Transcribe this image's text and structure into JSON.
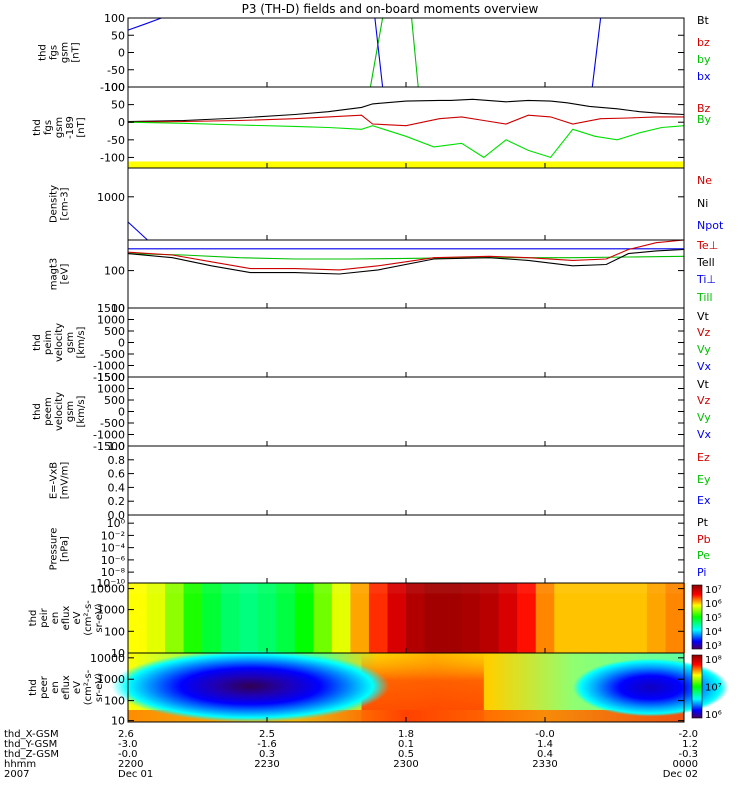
{
  "title": "P3 (TH-D) fields and on-board moments overview",
  "colors": {
    "black": "#000000",
    "red": "#cc0000",
    "green": "#00e000",
    "blue": "#0000ee",
    "yellow": "#ffff00",
    "frame": "#000000"
  },
  "chart_data": [
    {
      "id": "p1",
      "type": "line",
      "ylabel": [
        "thd",
        "fgs",
        "gsm",
        "[nT]"
      ],
      "yticks": [
        "100",
        "50",
        "0",
        "-50",
        "-100"
      ],
      "ytick_values": [
        100,
        50,
        0,
        -50,
        -100
      ],
      "ylim": [
        -100,
        100
      ],
      "legend": [
        {
          "label": "Bt",
          "color": "#000000"
        },
        {
          "label": "bz",
          "color": "#cc0000"
        },
        {
          "label": "by",
          "color": "#00c000"
        },
        {
          "label": "bx",
          "color": "#0000ee"
        }
      ],
      "series": [
        {
          "color": "#0000ee",
          "x": [
            0.0,
            0.03,
            0.06
          ],
          "y": [
            65,
            82,
            100
          ]
        },
        {
          "color": "#00c000",
          "x": [
            0.436,
            0.458
          ],
          "y": [
            -100,
            100
          ]
        },
        {
          "color": "#0000ee",
          "x": [
            0.444,
            0.458
          ],
          "y": [
            100,
            -100
          ]
        },
        {
          "color": "#00c000",
          "x": [
            0.51,
            0.522
          ],
          "y": [
            100,
            -100
          ]
        },
        {
          "color": "#0000ee",
          "x": [
            0.835,
            0.85
          ],
          "y": [
            -100,
            100
          ]
        }
      ]
    },
    {
      "id": "p2",
      "type": "line",
      "ylabel": [
        "thd",
        "fgs",
        "gsm",
        "-189",
        "[nT]"
      ],
      "yticks": [
        "100",
        "50",
        "0",
        "-50",
        "-100"
      ],
      "ytick_values": [
        100,
        50,
        0,
        -50,
        -100
      ],
      "ylim": [
        -130,
        100
      ],
      "legend": [
        {
          "label": "Bz",
          "color": "#cc0000"
        },
        {
          "label": "By",
          "color": "#00c000"
        }
      ],
      "bar_color": "#ffff00",
      "bar_value": -120,
      "series": [
        {
          "name": "black",
          "color": "#000000",
          "x": [
            0.0,
            0.1,
            0.2,
            0.3,
            0.36,
            0.42,
            0.44,
            0.5,
            0.56,
            0.58,
            0.62,
            0.68,
            0.72,
            0.76,
            0.79,
            0.83,
            0.88,
            0.92,
            0.96,
            1.0
          ],
          "y": [
            2,
            5,
            12,
            22,
            30,
            42,
            52,
            60,
            62,
            62,
            65,
            58,
            62,
            60,
            55,
            45,
            38,
            30,
            25,
            22
          ]
        },
        {
          "name": "red",
          "color": "#cc0000",
          "x": [
            0.0,
            0.1,
            0.2,
            0.3,
            0.36,
            0.42,
            0.44,
            0.5,
            0.56,
            0.6,
            0.64,
            0.68,
            0.72,
            0.76,
            0.8,
            0.85,
            0.9,
            0.95,
            1.0
          ],
          "y": [
            0,
            2,
            5,
            10,
            15,
            20,
            -5,
            -10,
            10,
            15,
            5,
            -5,
            20,
            15,
            -5,
            10,
            12,
            15,
            15
          ]
        },
        {
          "name": "green",
          "color": "#00e000",
          "x": [
            0.0,
            0.1,
            0.2,
            0.3,
            0.36,
            0.42,
            0.44,
            0.5,
            0.55,
            0.6,
            0.64,
            0.68,
            0.72,
            0.76,
            0.8,
            0.84,
            0.88,
            0.92,
            0.96,
            1.0
          ],
          "y": [
            0,
            -3,
            -8,
            -12,
            -15,
            -20,
            -10,
            -40,
            -70,
            -60,
            -100,
            -50,
            -80,
            -100,
            -20,
            -40,
            -50,
            -30,
            -15,
            -10
          ]
        }
      ]
    },
    {
      "id": "p3",
      "type": "line",
      "ylabel": [
        "Density",
        "[cm-3]"
      ],
      "yticks": [
        "1000"
      ],
      "ytick_values": [
        0.6
      ],
      "ylim": [
        0,
        1
      ],
      "legend": [
        {
          "label": "Ne",
          "color": "#cc0000"
        },
        {
          "label": "Ni",
          "color": "#000000"
        },
        {
          "label": "Npot",
          "color": "#0000ee"
        }
      ],
      "series": [
        {
          "color": "#0000ee",
          "x": [
            0.0,
            0.035
          ],
          "y": [
            0.25,
            0.0
          ]
        }
      ]
    },
    {
      "id": "p4",
      "type": "line",
      "ylabel": [
        "magt3",
        "[eV]"
      ],
      "yticks": [
        "100",
        "10"
      ],
      "ytick_values": [
        0.55,
        0.0
      ],
      "ylim": [
        0,
        1
      ],
      "legend": [
        {
          "label": "Te⊥",
          "color": "#cc0000"
        },
        {
          "label": "Tell",
          "color": "#000000"
        },
        {
          "label": "Ti⊥",
          "color": "#0000ee"
        },
        {
          "label": "Till",
          "color": "#00c000"
        }
      ],
      "series": [
        {
          "name": "blue",
          "color": "#0000ee",
          "x": [
            0.0,
            0.2,
            0.4,
            0.6,
            0.8,
            1.0
          ],
          "y": [
            0.87,
            0.87,
            0.87,
            0.87,
            0.87,
            0.87
          ]
        },
        {
          "name": "green",
          "color": "#00c000",
          "x": [
            0.0,
            0.1,
            0.2,
            0.3,
            0.4,
            0.5,
            0.6,
            0.7,
            0.8,
            0.9,
            1.0
          ],
          "y": [
            0.8,
            0.78,
            0.74,
            0.72,
            0.72,
            0.73,
            0.74,
            0.74,
            0.74,
            0.75,
            0.76
          ]
        },
        {
          "name": "red",
          "color": "#cc0000",
          "x": [
            0.0,
            0.08,
            0.15,
            0.22,
            0.3,
            0.38,
            0.45,
            0.55,
            0.65,
            0.72,
            0.8,
            0.86,
            0.9,
            0.95,
            1.0
          ],
          "y": [
            0.82,
            0.78,
            0.68,
            0.58,
            0.58,
            0.56,
            0.62,
            0.74,
            0.76,
            0.74,
            0.7,
            0.72,
            0.86,
            0.96,
            1.0
          ]
        },
        {
          "name": "black",
          "color": "#000000",
          "x": [
            0.0,
            0.08,
            0.15,
            0.22,
            0.3,
            0.38,
            0.45,
            0.55,
            0.65,
            0.72,
            0.8,
            0.86,
            0.9,
            0.95,
            1.0
          ],
          "y": [
            0.8,
            0.74,
            0.62,
            0.52,
            0.52,
            0.5,
            0.56,
            0.72,
            0.74,
            0.7,
            0.62,
            0.64,
            0.8,
            0.84,
            0.86
          ]
        }
      ]
    },
    {
      "id": "p5",
      "type": "line",
      "ylabel": [
        "thd",
        "peim",
        "velocity",
        "gsm",
        "[km/s]"
      ],
      "yticks": [
        "1500",
        "1000",
        "500",
        "0",
        "-500",
        "-1000",
        "-1500"
      ],
      "ytick_values": [
        1500,
        1000,
        500,
        0,
        -500,
        -1000,
        -1500
      ],
      "ylim": [
        -1500,
        1500
      ],
      "legend": [
        {
          "label": "Vt",
          "color": "#000000"
        },
        {
          "label": "Vz",
          "color": "#cc0000"
        },
        {
          "label": "Vy",
          "color": "#00c000"
        },
        {
          "label": "Vx",
          "color": "#0000ee"
        }
      ],
      "series": []
    },
    {
      "id": "p6",
      "type": "line",
      "ylabel": [
        "thd",
        "peem",
        "velocity",
        "gsm",
        "[km/s]"
      ],
      "yticks": [
        "1500",
        "1000",
        "500",
        "0",
        "-500",
        "-1000",
        "-1500"
      ],
      "ytick_values": [
        1500,
        1000,
        500,
        0,
        -500,
        -1000,
        -1500
      ],
      "ylim": [
        -1500,
        1500
      ],
      "legend": [
        {
          "label": "Vt",
          "color": "#000000"
        },
        {
          "label": "Vz",
          "color": "#cc0000"
        },
        {
          "label": "Vy",
          "color": "#00c000"
        },
        {
          "label": "Vx",
          "color": "#0000ee"
        }
      ],
      "series": []
    },
    {
      "id": "p7",
      "type": "line",
      "ylabel": [
        "E=-VxB",
        "[mV/m]"
      ],
      "yticks": [
        "1.0",
        "0.8",
        "0.6",
        "0.4",
        "0.2",
        "0.0"
      ],
      "ytick_values": [
        1.0,
        0.8,
        0.6,
        0.4,
        0.2,
        0.0
      ],
      "ylim": [
        0,
        1
      ],
      "legend": [
        {
          "label": "Ez",
          "color": "#cc0000"
        },
        {
          "label": "Ey",
          "color": "#00c000"
        },
        {
          "label": "Ex",
          "color": "#0000ee"
        }
      ],
      "series": []
    },
    {
      "id": "p8",
      "type": "line",
      "ylabel": [
        "Pressure",
        "[nPa]"
      ],
      "yticks": [
        "10⁰",
        "10⁻²",
        "10⁻⁴",
        "10⁻⁶",
        "10⁻⁸",
        "10⁻¹⁰"
      ],
      "ytick_values": [
        0.88,
        0.7,
        0.52,
        0.34,
        0.16,
        0.0
      ],
      "ylim": [
        0,
        1
      ],
      "legend": [
        {
          "label": "Pt",
          "color": "#000000"
        },
        {
          "label": "Pb",
          "color": "#cc0000"
        },
        {
          "label": "Pe",
          "color": "#00c000"
        },
        {
          "label": "Pi",
          "color": "#0000ee"
        }
      ],
      "series": []
    },
    {
      "id": "p9",
      "type": "heatmap",
      "ylabel": [
        "thd",
        "peir",
        "en",
        "eflux",
        "eV",
        "(cm²-s-",
        "sr-eV)"
      ],
      "yticks": [
        "10000",
        "1000",
        "100",
        "10"
      ],
      "ytick_values": [
        0.92,
        0.62,
        0.31,
        0.0
      ],
      "ylim": [
        0,
        1
      ],
      "colorbar_ticks": [
        "10⁷",
        "10⁶",
        "10⁵",
        "10⁴",
        "10³"
      ],
      "column_levels": [
        0.68,
        0.66,
        0.6,
        0.52,
        0.46,
        0.42,
        0.4,
        0.42,
        0.45,
        0.5,
        0.58,
        0.66,
        0.74,
        0.82,
        0.9,
        0.95,
        0.97,
        0.97,
        0.96,
        0.94,
        0.9,
        0.84,
        0.76,
        0.72,
        0.72,
        0.72,
        0.72,
        0.72,
        0.74,
        0.76
      ]
    },
    {
      "id": "p10",
      "type": "heatmap",
      "ylabel": [
        "thd",
        "peer",
        "en",
        "eflux",
        "eV",
        "(cm²-s-",
        "sr-eV)"
      ],
      "yticks": [
        "10000",
        "1000",
        "100",
        "10"
      ],
      "ytick_values": [
        0.93,
        0.62,
        0.31,
        0.02
      ],
      "ylim": [
        0,
        1
      ],
      "colorbar_ticks": [
        "10⁸",
        "10⁷",
        "10⁶"
      ]
    }
  ],
  "xaxis": {
    "rows": [
      {
        "label": "thd_X-GSM",
        "values": [
          "2.6",
          "2.5",
          "1.8",
          "-0.0",
          "-2.0"
        ]
      },
      {
        "label": "thd_Y-GSM",
        "values": [
          "-3.0",
          "-1.6",
          "0.1",
          "1.4",
          "1.2"
        ]
      },
      {
        "label": "thd_Z-GSM",
        "values": [
          "-0.0",
          "0.3",
          "0.5",
          "0.4",
          "-0.3"
        ]
      },
      {
        "label": "hhmm",
        "values": [
          "2200",
          "2230",
          "2300",
          "2330",
          "0000"
        ]
      },
      {
        "label": "2007",
        "values": [
          "Dec 01",
          "",
          "",
          "",
          "Dec 02"
        ]
      }
    ]
  }
}
